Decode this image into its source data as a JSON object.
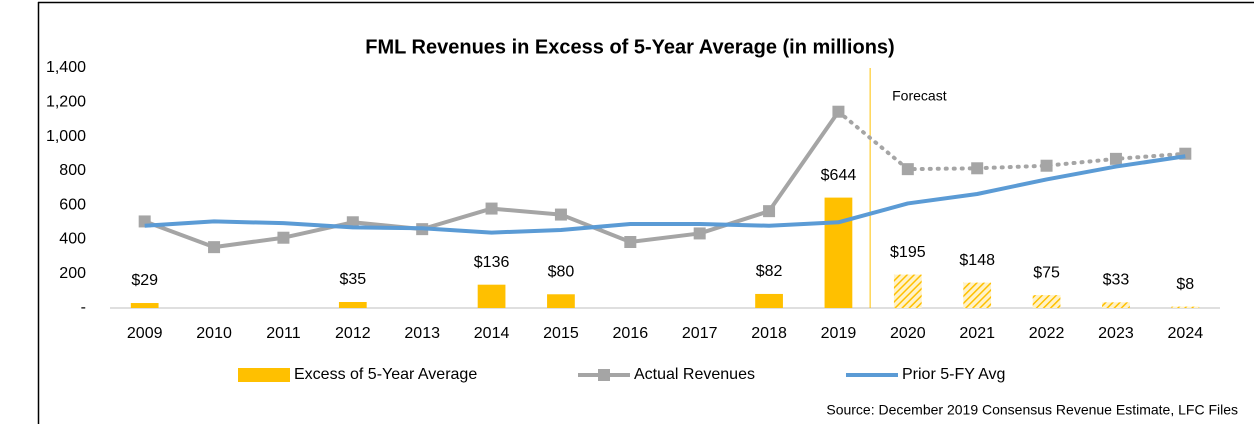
{
  "chart_data": {
    "type": "combo",
    "title": "FML Revenues in Excess of 5-Year Average (in millions)",
    "source": "Source: December 2019 Consensus Revenue Estimate, LFC Files",
    "annotation": {
      "text": "Forecast",
      "from": "2020"
    },
    "categories": [
      "2009",
      "2010",
      "2011",
      "2012",
      "2013",
      "2014",
      "2015",
      "2016",
      "2017",
      "2018",
      "2019",
      "2020",
      "2021",
      "2022",
      "2023",
      "2024"
    ],
    "series": [
      {
        "name": "Excess of 5-Year Average",
        "type": "bar",
        "color": "#ffc000",
        "values": [
          29,
          null,
          null,
          35,
          null,
          136,
          80,
          null,
          null,
          82,
          644,
          195,
          148,
          75,
          33,
          8
        ],
        "value_labels": [
          "$29",
          null,
          null,
          "$35",
          null,
          "$136",
          "$80",
          null,
          null,
          "$82",
          "$644",
          "$195",
          "$148",
          "$75",
          "$33",
          "$8"
        ]
      },
      {
        "name": "Actual Revenues",
        "type": "line",
        "color": "#a5a5a5",
        "marker": "square",
        "values": [
          505,
          355,
          410,
          500,
          460,
          580,
          545,
          385,
          435,
          565,
          1145,
          810,
          815,
          830,
          870,
          900
        ]
      },
      {
        "name": "Prior 5-FY Avg",
        "type": "line",
        "color": "#5b9bd5",
        "values": [
          480,
          505,
          495,
          470,
          465,
          440,
          455,
          490,
          490,
          480,
          500,
          610,
          665,
          750,
          825,
          885
        ]
      }
    ],
    "ylim": [
      0,
      1400
    ],
    "yticks": [
      {
        "value": 0,
        "label": "-"
      },
      200,
      400,
      600,
      800,
      {
        "value": 1000,
        "label": "1,000"
      },
      {
        "value": 1200,
        "label": "1,200"
      },
      {
        "value": 1400,
        "label": "1,400"
      }
    ],
    "grid": false,
    "legend": "bottom"
  }
}
